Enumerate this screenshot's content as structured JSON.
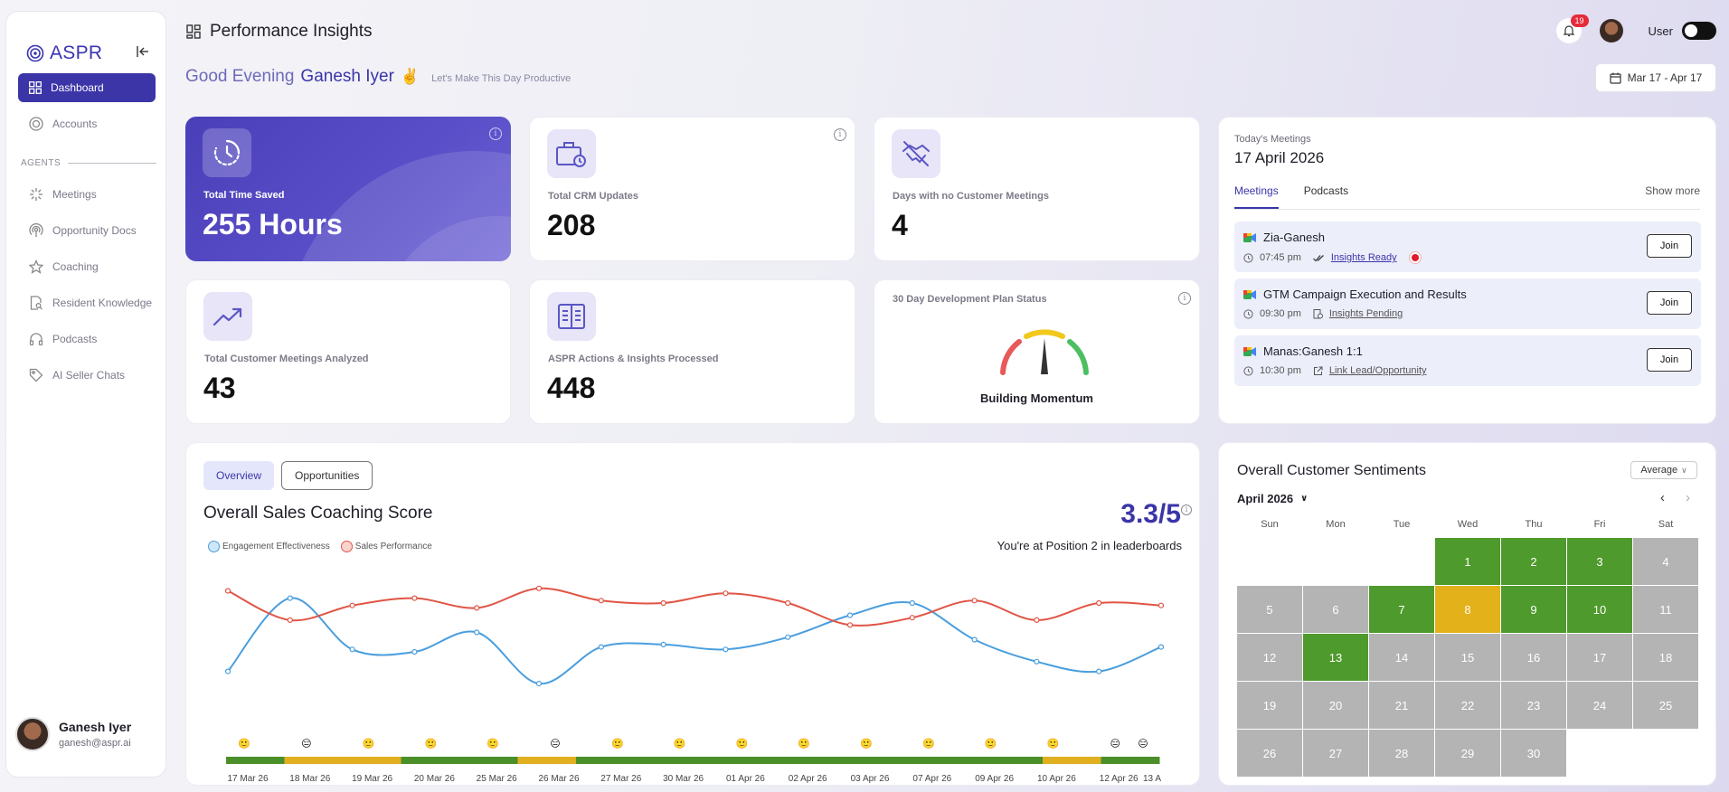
{
  "sidebar": {
    "brand": "ASPR",
    "items": [
      {
        "label": "Dashboard"
      },
      {
        "label": "Accounts"
      },
      {
        "label": "Meetings"
      },
      {
        "label": "Opportunity Docs"
      },
      {
        "label": "Coaching"
      },
      {
        "label": "Resident Knowledge"
      },
      {
        "label": "Podcasts"
      },
      {
        "label": "AI Seller Chats"
      }
    ],
    "section_label": "AGENTS",
    "user": {
      "name": "Ganesh Iyer",
      "email": "ganesh@aspr.ai"
    }
  },
  "header": {
    "title": "Performance Insights",
    "greeting": "Good Evening",
    "user_name": "Ganesh Iyer",
    "emoji": "✌️",
    "subtitle": "Let's Make This Day Productive",
    "notification_count": "19",
    "user_label": "User",
    "date_range": "Mar 17 - Apr 17"
  },
  "stats": [
    {
      "label": "Total Time Saved",
      "value": "255 Hours"
    },
    {
      "label": "Total CRM Updates",
      "value": "208"
    },
    {
      "label": "Days with no Customer Meetings",
      "value": "4"
    },
    {
      "label": "Total Customer Meetings Analyzed",
      "value": "43"
    },
    {
      "label": "ASPR Actions & Insights Processed",
      "value": "448"
    }
  ],
  "dev_plan": {
    "label": "30 Day Development Plan Status",
    "status": "Building Momentum",
    "level": 0.5
  },
  "meetings": {
    "label": "Today's Meetings",
    "date": "17 April 2026",
    "tabs": [
      "Meetings",
      "Podcasts"
    ],
    "show_more": "Show more",
    "join_label": "Join",
    "list": [
      {
        "title": "Zia-Ganesh",
        "time": "07:45 pm",
        "link": "Insights Ready"
      },
      {
        "title": "GTM Campaign Execution and Results",
        "time": "09:30 pm",
        "link": "Insights Pending"
      },
      {
        "title": "Manas:Ganesh 1:1",
        "time": "10:30 pm",
        "link": "Link Lead/Opportunity"
      }
    ]
  },
  "coaching": {
    "tabs": [
      "Overview",
      "Opportunities"
    ],
    "title": "Overall Sales Coaching Score",
    "score": "3.3/5",
    "position_text": "You're at Position 2 in leaderboards",
    "legend": [
      "Engagement Effectiveness",
      "Sales Performance"
    ]
  },
  "chart_data": {
    "type": "line",
    "x": [
      "17 Mar 26",
      "18 Mar 26",
      "19 Mar 26",
      "20 Mar 26",
      "25 Mar 26",
      "26 Mar 26",
      "27 Mar 26",
      "30 Mar 26",
      "01 Apr 26",
      "02 Apr 26",
      "03 Apr 26",
      "07 Apr 26",
      "09 Apr 26",
      "10 Apr 26",
      "12 Apr 26",
      "13 A"
    ],
    "series": [
      {
        "name": "Engagement Effectiveness",
        "color": "#4a9ede",
        "values": [
          1.2,
          4.2,
          2.1,
          2.0,
          2.8,
          0.7,
          2.2,
          2.3,
          2.1,
          2.6,
          3.5,
          4.0,
          2.5,
          1.6,
          1.2,
          2.2
        ]
      },
      {
        "name": "Sales Performance",
        "color": "#e05545",
        "values": [
          4.5,
          3.3,
          3.9,
          4.2,
          3.8,
          4.6,
          4.1,
          4.0,
          4.4,
          4.0,
          3.1,
          3.4,
          4.1,
          3.3,
          4.0,
          3.9
        ]
      }
    ],
    "grid": false,
    "legend": "top-left",
    "emoji_markers": [
      "🙂",
      "😑",
      "🙂",
      "🙂",
      "🙂",
      "😑",
      "🙂",
      "🙂",
      "🙂",
      "🙂",
      "🙂",
      "🙂",
      "🙂",
      "🙂",
      "😑",
      "😑"
    ],
    "bar_segments": [
      "#4a8f2a",
      "#e0b020",
      "#e0b020",
      "#4a8f2a",
      "#4a8f2a",
      "#e0b020",
      "#4a8f2a",
      "#4a8f2a",
      "#4a8f2a",
      "#4a8f2a",
      "#4a8f2a",
      "#4a8f2a",
      "#4a8f2a",
      "#4a8f2a",
      "#e0b020",
      "#4a8f2a"
    ]
  },
  "sentiment": {
    "title": "Overall Customer Sentiments",
    "select": "Average",
    "month": "April 2026",
    "weekdays": [
      "Sun",
      "Mon",
      "Tue",
      "Wed",
      "Thu",
      "Fri",
      "Sat"
    ],
    "first_weekday": 3,
    "days": [
      {
        "d": "1",
        "c": "green"
      },
      {
        "d": "2",
        "c": "green"
      },
      {
        "d": "3",
        "c": "green"
      },
      {
        "d": "4",
        "c": "grey"
      },
      {
        "d": "5",
        "c": "grey"
      },
      {
        "d": "6",
        "c": "grey"
      },
      {
        "d": "7",
        "c": "green"
      },
      {
        "d": "8",
        "c": "yellow"
      },
      {
        "d": "9",
        "c": "green"
      },
      {
        "d": "10",
        "c": "green"
      },
      {
        "d": "11",
        "c": "grey"
      },
      {
        "d": "12",
        "c": "grey"
      },
      {
        "d": "13",
        "c": "green"
      },
      {
        "d": "14",
        "c": "grey"
      },
      {
        "d": "15",
        "c": "grey"
      },
      {
        "d": "16",
        "c": "grey"
      },
      {
        "d": "17",
        "c": "grey"
      },
      {
        "d": "18",
        "c": "grey"
      },
      {
        "d": "19",
        "c": "grey"
      },
      {
        "d": "20",
        "c": "grey"
      },
      {
        "d": "21",
        "c": "grey"
      },
      {
        "d": "22",
        "c": "grey"
      },
      {
        "d": "23",
        "c": "grey"
      },
      {
        "d": "24",
        "c": "grey"
      },
      {
        "d": "25",
        "c": "grey"
      },
      {
        "d": "26",
        "c": "grey"
      },
      {
        "d": "27",
        "c": "grey"
      },
      {
        "d": "28",
        "c": "grey"
      },
      {
        "d": "29",
        "c": "grey"
      },
      {
        "d": "30",
        "c": "grey"
      }
    ],
    "colors": {
      "green": "#4e9a2c",
      "yellow": "#e3b11a",
      "grey": "#b4b4b4"
    }
  }
}
